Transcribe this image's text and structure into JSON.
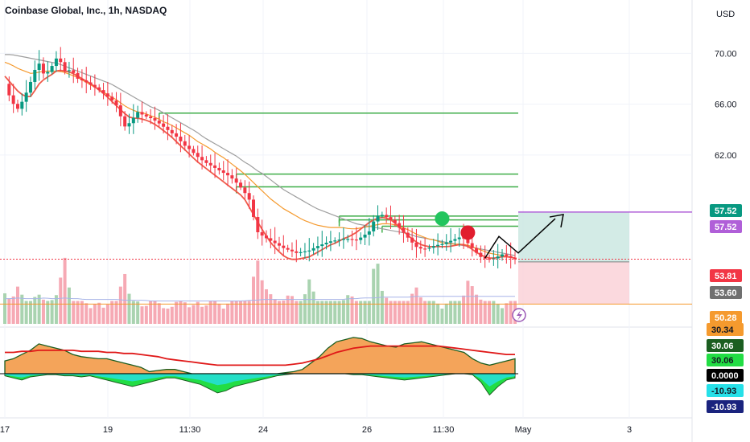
{
  "header": {
    "title": "Coinbase Global, Inc., 1h, NASDAQ",
    "currency": "USD"
  },
  "colors": {
    "up": "#089981",
    "down": "#f23645",
    "upVol": "#a9d3b0",
    "downVol": "#f6a9b4",
    "ema_fast": "#f05a4a",
    "ema_mid": "#f59a2e",
    "sma_slow": "#9e9e9e",
    "level": "#3fae49",
    "target": "#b05fd8"
  },
  "chart_data": [
    {
      "type": "line",
      "title": "Coinbase Global, Inc., 1h, NASDAQ",
      "x_ticks": [
        "17",
        "19",
        "11:30",
        "24",
        "26",
        "11:30",
        "May",
        "3"
      ],
      "y_ticks": [
        70.0,
        66.0,
        62.0
      ],
      "y_tick_labels": [
        "70.00",
        "66.00",
        "62.00"
      ],
      "ylim": [
        48.6,
        72.8
      ],
      "close": [
        67.6,
        66.2,
        65.6,
        66.6,
        67.9,
        69.4,
        68.2,
        68.9,
        69.8,
        68.6,
        68.7,
        68.0,
        67.8,
        67.5,
        67.2,
        66.8,
        66.4,
        65.8,
        64.2,
        64.6,
        65.4,
        65.1,
        64.9,
        64.6,
        64.2,
        63.8,
        63.4,
        62.8,
        62.4,
        61.9,
        61.5,
        61.2,
        60.9,
        60.6,
        60.3,
        59.8,
        59.2,
        58.4,
        56.0,
        55.6,
        55.3,
        55.0,
        54.7,
        54.5,
        54.3,
        54.4,
        54.5,
        54.8,
        55.0,
        55.2,
        55.3,
        55.4,
        55.4,
        55.3,
        55.6,
        56.0,
        57.2,
        57.3,
        57.0,
        56.6,
        56.0,
        55.4,
        54.8,
        54.6,
        54.7,
        54.9,
        55.0,
        55.2,
        55.4,
        55.6,
        55.0,
        54.4,
        53.9,
        53.8,
        53.9,
        54.2,
        54.0,
        53.81
      ],
      "ema_fast": [
        68.2,
        67.6,
        67.0,
        66.6,
        66.6,
        67.5,
        68.0,
        68.3,
        68.7,
        68.6,
        68.5,
        68.2,
        67.9,
        67.6,
        67.2,
        66.8,
        66.3,
        65.8,
        65.3,
        64.9,
        64.9,
        64.8,
        64.6,
        64.3,
        63.9,
        63.5,
        63.0,
        62.5,
        62.0,
        61.5,
        61.1,
        60.7,
        60.3,
        59.9,
        59.5,
        59.1,
        58.7,
        57.8,
        56.9,
        56.0,
        55.2,
        54.6,
        54.1,
        53.8,
        53.8,
        53.9,
        54.0,
        54.3,
        54.6,
        54.9,
        55.1,
        55.4,
        55.6,
        55.9,
        56.3,
        56.7,
        57.0,
        57.1,
        57.0,
        56.6,
        56.1,
        55.6,
        55.2,
        54.9,
        54.8,
        54.8,
        54.8,
        54.8,
        54.9,
        55.0,
        54.8,
        54.4,
        54.1,
        53.9,
        53.9,
        54.0,
        54.0,
        53.9
      ],
      "ema_mid": [
        69.3,
        69.1,
        68.8,
        68.6,
        68.4,
        68.5,
        68.6,
        68.6,
        68.6,
        68.5,
        68.3,
        68.1,
        67.8,
        67.5,
        67.2,
        66.9,
        66.6,
        66.3,
        65.9,
        65.6,
        65.4,
        65.3,
        65.1,
        64.9,
        64.6,
        64.4,
        64.1,
        63.8,
        63.5,
        63.1,
        62.8,
        62.5,
        62.1,
        61.8,
        61.4,
        61.0,
        60.6,
        60.1,
        59.6,
        59.1,
        58.6,
        58.2,
        57.8,
        57.5,
        57.2,
        56.9,
        56.7,
        56.5,
        56.4,
        56.3,
        56.3,
        56.3,
        56.2,
        56.2,
        56.3,
        56.4,
        56.5,
        56.6,
        56.6,
        56.5,
        56.3,
        56.1,
        55.8,
        55.6,
        55.4,
        55.3,
        55.1,
        55.0,
        55.0,
        55.0,
        54.9,
        54.7,
        54.5,
        54.3,
        54.2,
        54.1,
        54.0,
        53.9
      ],
      "sma_slow": [
        69.9,
        69.9,
        69.8,
        69.7,
        69.6,
        69.5,
        69.4,
        69.3,
        69.2,
        69.0,
        68.8,
        68.6,
        68.4,
        68.2,
        68.0,
        67.8,
        67.6,
        67.3,
        67.0,
        66.7,
        66.4,
        66.1,
        65.8,
        65.6,
        65.3,
        65.0,
        64.7,
        64.4,
        64.1,
        63.8,
        63.4,
        63.1,
        62.8,
        62.5,
        62.2,
        61.9,
        61.5,
        61.2,
        60.8,
        60.5,
        60.1,
        59.7,
        59.3,
        59.0,
        58.7,
        58.4,
        58.1,
        57.8,
        57.6,
        57.4,
        57.2,
        57.0,
        56.8,
        56.6,
        56.5,
        56.4,
        56.3,
        56.2,
        56.1,
        56.0,
        55.9,
        55.8,
        55.6,
        55.5,
        55.4,
        55.3,
        55.2,
        55.1,
        55.0,
        54.9,
        54.8,
        54.7,
        54.6,
        54.5,
        54.4,
        54.3,
        54.2,
        54.1
      ],
      "volume": [
        0.4,
        0.3,
        0.5,
        0.3,
        0.3,
        0.4,
        0.3,
        0.3,
        0.4,
        0.9,
        0.3,
        0.3,
        0.3,
        0.2,
        0.3,
        0.2,
        0.3,
        0.3,
        0.7,
        0.3,
        0.3,
        0.2,
        0.3,
        0.3,
        0.2,
        0.2,
        0.3,
        0.3,
        0.2,
        0.3,
        0.2,
        0.3,
        0.3,
        0.2,
        0.3,
        0.3,
        0.3,
        0.3,
        0.9,
        0.5,
        0.4,
        0.3,
        0.3,
        0.4,
        0.3,
        0.3,
        0.6,
        0.3,
        0.3,
        0.3,
        0.3,
        0.3,
        0.4,
        0.3,
        0.3,
        0.3,
        0.95,
        0.4,
        0.3,
        0.3,
        0.3,
        0.3,
        0.5,
        0.3,
        0.3,
        0.3,
        0.2,
        0.3,
        0.3,
        0.3,
        0.6,
        0.4,
        0.3,
        0.3,
        0.3,
        0.2,
        0.3,
        0.3
      ],
      "volume_avg": [
        0.33,
        0.33,
        0.34,
        0.33,
        0.33,
        0.33,
        0.34,
        0.33,
        0.33,
        0.34,
        0.33,
        0.33,
        0.32,
        0.32,
        0.32,
        0.32,
        0.32,
        0.32,
        0.31,
        0.31,
        0.31,
        0.31,
        0.3,
        0.3,
        0.3,
        0.3,
        0.3,
        0.3,
        0.3,
        0.3,
        0.3,
        0.3,
        0.3,
        0.3,
        0.3,
        0.3,
        0.3,
        0.31,
        0.31,
        0.32,
        0.32,
        0.32,
        0.32,
        0.32,
        0.32,
        0.32,
        0.32,
        0.32,
        0.32,
        0.32,
        0.32,
        0.32,
        0.33,
        0.33,
        0.34,
        0.34,
        0.34,
        0.35,
        0.35,
        0.35,
        0.35,
        0.35,
        0.36,
        0.36,
        0.36,
        0.36,
        0.36,
        0.36,
        0.36,
        0.36,
        0.36,
        0.36,
        0.36,
        0.36,
        0.36,
        0.36,
        0.36,
        0.36
      ],
      "support_levels": [
        {
          "value": 65.3,
          "from_bar": 36
        },
        {
          "value": 60.5,
          "from_bar": 54
        },
        {
          "value": 59.5,
          "from_bar": 54
        },
        {
          "value": 57.2,
          "from_bar": 78
        },
        {
          "value": 56.9,
          "from_bar": 78
        },
        {
          "value": 56.4,
          "from_bar": 88
        }
      ],
      "position": {
        "entry": 53.6,
        "target": 57.52,
        "stop": 50.28
      },
      "price_labels": [
        {
          "value": 57.52,
          "label": "57.52",
          "bg": "#089981"
        },
        {
          "value": 57.52,
          "label": "57.52",
          "bg": "#b05fd8"
        },
        {
          "value": 53.81,
          "label": "53.81",
          "bg": "#f23645"
        },
        {
          "value": 53.6,
          "label": "53.60",
          "bg": "#707070"
        },
        {
          "value": 50.28,
          "label": "50.28",
          "bg": "#f59a2e"
        }
      ],
      "signals": [
        {
          "kind": "buy",
          "bar": 102,
          "value": 57.0,
          "color": "#22c55e"
        },
        {
          "kind": "sell",
          "bar": 108,
          "value": 55.9,
          "color": "#e11d2e"
        }
      ]
    },
    {
      "type": "area",
      "oscillator": [
        12,
        14,
        18,
        22,
        28,
        26,
        24,
        22,
        18,
        16,
        15,
        14,
        14,
        12,
        10,
        8,
        6,
        2,
        3,
        4,
        4,
        2,
        0,
        -2,
        -4,
        -6,
        -6,
        -5,
        -4,
        -3,
        -2,
        -1,
        0,
        1,
        2,
        4,
        10,
        16,
        24,
        30,
        32,
        34,
        33,
        30,
        28,
        26,
        25,
        28,
        29,
        30,
        28,
        26,
        24,
        22,
        20,
        14,
        10,
        8,
        10,
        12,
        14
      ],
      "signal_line": [
        20,
        20,
        21,
        21,
        22,
        22,
        22,
        22,
        22,
        21,
        21,
        21,
        20,
        20,
        19,
        19,
        18,
        17,
        16,
        14,
        13,
        12,
        11,
        10,
        9,
        8,
        8,
        8,
        8,
        8,
        8,
        8,
        8,
        8,
        9,
        10,
        12,
        14,
        17,
        20,
        22,
        24,
        25,
        26,
        26,
        26,
        26,
        26,
        26,
        26,
        26,
        26,
        25,
        24,
        23,
        22,
        21,
        20,
        19,
        18,
        18
      ],
      "histogram": [
        -2,
        -4,
        -6,
        -3,
        -2,
        -1,
        -1,
        -2,
        -2,
        -3,
        -2,
        -4,
        -6,
        -8,
        -10,
        -12,
        -10,
        -8,
        -6,
        -4,
        -4,
        -6,
        -8,
        -10,
        -14,
        -18,
        -16,
        -12,
        -10,
        -8,
        -6,
        -4,
        -2,
        -1,
        0,
        1,
        2,
        2,
        2,
        1,
        0,
        -1,
        -1,
        -2,
        -3,
        -4,
        -5,
        -6,
        -5,
        -4,
        -3,
        -2,
        -1,
        0,
        0,
        -1,
        -8,
        -20,
        -12,
        -6,
        -4
      ],
      "value_labels": [
        {
          "value": 30.34,
          "label": "30.34",
          "bg": "#f59a2e",
          "fg": "#131722"
        },
        {
          "value": 30.06,
          "label": "30.06",
          "bg": "#1b5e20",
          "fg": "#ffffff"
        },
        {
          "value": 30.06,
          "label": "30.06",
          "bg": "#22dd44",
          "fg": "#131722"
        },
        {
          "value": 0.0,
          "label": "0.0000",
          "bg": "#000000",
          "fg": "#ffffff"
        },
        {
          "value": -10.93,
          "label": "-10.93",
          "bg": "#26e0e8",
          "fg": "#131722"
        },
        {
          "value": -10.93,
          "label": "-10.93",
          "bg": "#1a237e",
          "fg": "#ffffff"
        }
      ]
    }
  ]
}
